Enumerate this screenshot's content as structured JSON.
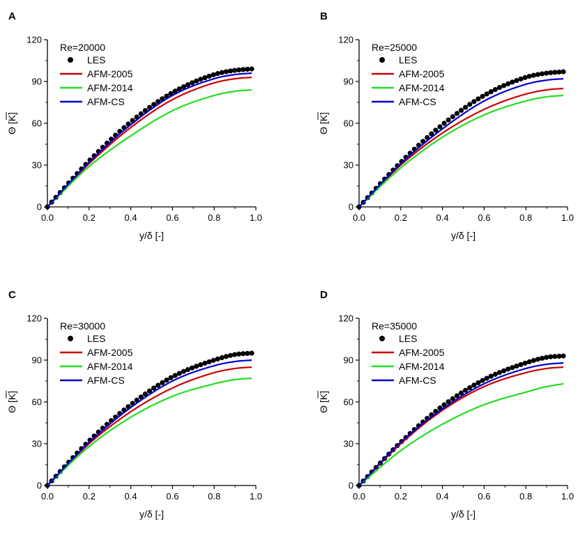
{
  "series_styles": [
    {
      "name": "LES",
      "color": "#000000",
      "kind": "markers"
    },
    {
      "name": "AFM-2005",
      "color": "#cc0000",
      "kind": "line"
    },
    {
      "name": "AFM-2014",
      "color": "#22dd22",
      "kind": "line"
    },
    {
      "name": "AFM-CS",
      "color": "#0000cc",
      "kind": "line"
    }
  ],
  "chart_data": [
    {
      "panel": "A",
      "type": "line",
      "title": "Re=20000",
      "xlabel": "y/δ [-]",
      "ylabel": "Θ [K]",
      "xlim": [
        0,
        1
      ],
      "ylim": [
        0,
        120
      ],
      "xticks": [
        "0.0",
        "0.2",
        "0.4",
        "0.6",
        "0.8",
        "1.0"
      ],
      "yticks": [
        "0",
        "30",
        "60",
        "90",
        "120"
      ],
      "legend": [
        "LES",
        "AFM-2005",
        "AFM-2014",
        "AFM-CS"
      ],
      "series": [
        {
          "name": "LES",
          "x": [
            0.0,
            0.2,
            0.4,
            0.6,
            0.8,
            0.9,
            0.98
          ],
          "y": [
            0,
            33,
            61,
            82,
            95,
            98,
            99
          ]
        },
        {
          "name": "AFM-2005",
          "x": [
            0.0,
            0.2,
            0.4,
            0.6,
            0.8,
            0.9,
            0.98
          ],
          "y": [
            0,
            31,
            57,
            77,
            89,
            92,
            93
          ]
        },
        {
          "name": "AFM-2014",
          "x": [
            0.0,
            0.2,
            0.4,
            0.6,
            0.8,
            0.9,
            0.98
          ],
          "y": [
            0,
            29,
            51,
            69,
            80,
            83,
            84
          ]
        },
        {
          "name": "AFM-CS",
          "x": [
            0.0,
            0.2,
            0.4,
            0.6,
            0.8,
            0.9,
            0.98
          ],
          "y": [
            0,
            32,
            59,
            80,
            92,
            95,
            96
          ]
        }
      ]
    },
    {
      "panel": "B",
      "type": "line",
      "title": "Re=25000",
      "xlabel": "y/δ [-]",
      "ylabel": "Θ [K]",
      "xlim": [
        0,
        1
      ],
      "ylim": [
        0,
        120
      ],
      "xticks": [
        "0.0",
        "0.2",
        "0.4",
        "0.6",
        "0.8",
        "1.0"
      ],
      "yticks": [
        "0",
        "30",
        "60",
        "90",
        "120"
      ],
      "legend": [
        "LES",
        "AFM-2005",
        "AFM-2014",
        "AFM-CS"
      ],
      "series": [
        {
          "name": "LES",
          "x": [
            0.0,
            0.2,
            0.4,
            0.6,
            0.8,
            0.9,
            0.98
          ],
          "y": [
            0,
            32,
            59,
            80,
            93,
            96,
            97
          ]
        },
        {
          "name": "AFM-2005",
          "x": [
            0.0,
            0.2,
            0.4,
            0.6,
            0.8,
            0.9,
            0.98
          ],
          "y": [
            0,
            30,
            53,
            70,
            81,
            84,
            85
          ]
        },
        {
          "name": "AFM-2014",
          "x": [
            0.0,
            0.2,
            0.4,
            0.6,
            0.8,
            0.9,
            0.98
          ],
          "y": [
            0,
            28,
            50,
            66,
            76,
            79,
            80
          ]
        },
        {
          "name": "AFM-CS",
          "x": [
            0.0,
            0.2,
            0.4,
            0.6,
            0.8,
            0.9,
            0.98
          ],
          "y": [
            0,
            31,
            56,
            76,
            88,
            91,
            92
          ]
        }
      ]
    },
    {
      "panel": "C",
      "type": "line",
      "title": "Re=30000",
      "xlabel": "y/δ [-]",
      "ylabel": "Θ [K]",
      "xlim": [
        0,
        1
      ],
      "ylim": [
        0,
        120
      ],
      "xticks": [
        "0.0",
        "0.2",
        "0.4",
        "0.6",
        "0.8",
        "1.0"
      ],
      "yticks": [
        "0",
        "30",
        "60",
        "90",
        "120"
      ],
      "legend": [
        "LES",
        "AFM-2005",
        "AFM-2014",
        "AFM-CS"
      ],
      "series": [
        {
          "name": "LES",
          "x": [
            0.0,
            0.2,
            0.4,
            0.6,
            0.8,
            0.9,
            0.98
          ],
          "y": [
            0,
            32,
            58,
            78,
            90,
            94,
            95
          ]
        },
        {
          "name": "AFM-2005",
          "x": [
            0.0,
            0.2,
            0.4,
            0.6,
            0.8,
            0.9,
            0.98
          ],
          "y": [
            0,
            30,
            53,
            70,
            81,
            84,
            85
          ]
        },
        {
          "name": "AFM-2014",
          "x": [
            0.0,
            0.2,
            0.4,
            0.6,
            0.8,
            0.9,
            0.98
          ],
          "y": [
            0,
            28,
            49,
            64,
            73,
            76,
            77
          ]
        },
        {
          "name": "AFM-CS",
          "x": [
            0.0,
            0.2,
            0.4,
            0.6,
            0.8,
            0.9,
            0.98
          ],
          "y": [
            0,
            31,
            56,
            75,
            86,
            89,
            90
          ]
        }
      ]
    },
    {
      "panel": "D",
      "type": "line",
      "title": "Re=35000",
      "xlabel": "y/δ [-]",
      "ylabel": "Θ [K]",
      "xlim": [
        0,
        1
      ],
      "ylim": [
        0,
        120
      ],
      "xticks": [
        "0.0",
        "0.2",
        "0.4",
        "0.6",
        "0.8",
        "1.0"
      ],
      "yticks": [
        "0",
        "30",
        "60",
        "90",
        "120"
      ],
      "legend": [
        "LES",
        "AFM-2005",
        "AFM-2014",
        "AFM-CS"
      ],
      "series": [
        {
          "name": "LES",
          "x": [
            0.0,
            0.2,
            0.4,
            0.6,
            0.8,
            0.9,
            0.98
          ],
          "y": [
            0,
            31,
            57,
            76,
            88,
            92,
            93
          ]
        },
        {
          "name": "AFM-2005",
          "x": [
            0.0,
            0.2,
            0.4,
            0.6,
            0.8,
            0.9,
            0.98
          ],
          "y": [
            0,
            30,
            54,
            71,
            81,
            84,
            85
          ]
        },
        {
          "name": "AFM-2014",
          "x": [
            0.0,
            0.2,
            0.4,
            0.6,
            0.8,
            0.9,
            0.98
          ],
          "y": [
            0,
            25,
            44,
            58,
            67,
            71,
            73
          ]
        },
        {
          "name": "AFM-CS",
          "x": [
            0.0,
            0.2,
            0.4,
            0.6,
            0.8,
            0.9,
            0.98
          ],
          "y": [
            0,
            31,
            55,
            73,
            84,
            87,
            88
          ]
        }
      ]
    }
  ]
}
